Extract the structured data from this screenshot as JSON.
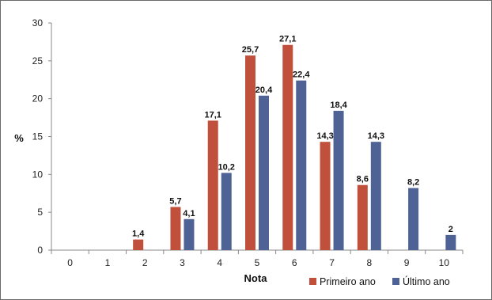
{
  "chart_data": {
    "type": "bar",
    "title": "",
    "xlabel": "Nota",
    "ylabel": "%",
    "ylim": [
      0,
      30
    ],
    "yticks": [
      "0",
      "5",
      "10",
      "15",
      "20",
      "25",
      "30"
    ],
    "categories": [
      "0",
      "1",
      "2",
      "3",
      "4",
      "5",
      "6",
      "7",
      "8",
      "9",
      "10"
    ],
    "grid": false,
    "legend_position": "bottom-right",
    "series": [
      {
        "name": "Primeiro ano",
        "color": "#c0503b",
        "values": [
          null,
          null,
          1.4,
          5.7,
          17.1,
          25.7,
          27.1,
          14.3,
          8.6,
          null,
          null
        ],
        "labels": [
          "",
          "",
          "1,4",
          "5,7",
          "17,1",
          "25,7",
          "27,1",
          "14,3",
          "8,6",
          "",
          ""
        ]
      },
      {
        "name": "Último ano",
        "color": "#4e6295",
        "values": [
          null,
          null,
          null,
          4.1,
          10.2,
          20.4,
          22.4,
          18.4,
          14.3,
          8.2,
          2
        ],
        "labels": [
          "",
          "",
          "",
          "4,1",
          "10,2",
          "20,4",
          "22,4",
          "18,4",
          "14,3",
          "8,2",
          "2"
        ]
      }
    ]
  }
}
